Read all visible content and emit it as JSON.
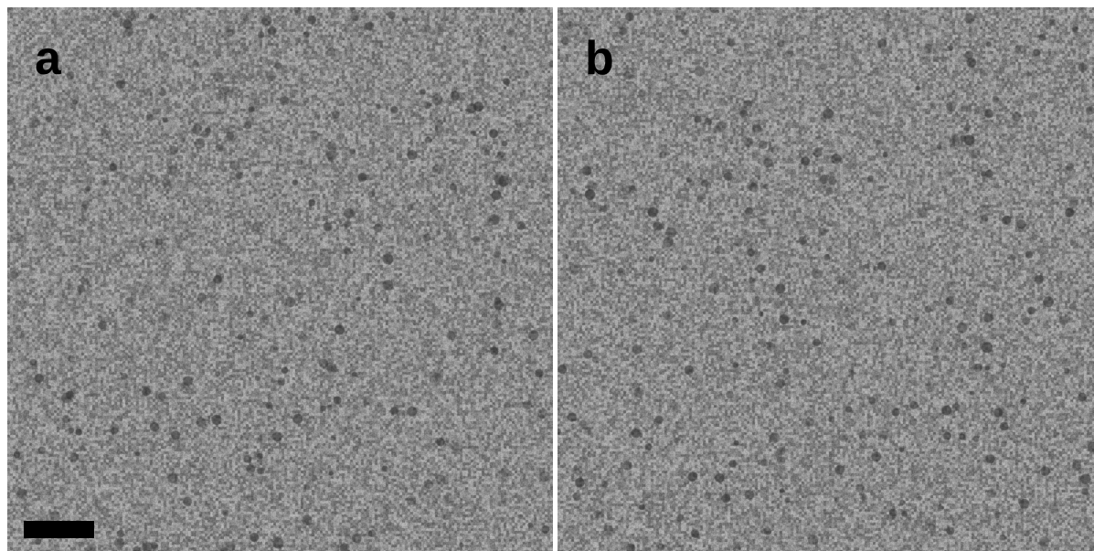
{
  "figure": {
    "panels": [
      {
        "label": "a"
      },
      {
        "label": "b"
      }
    ],
    "colors": {
      "background": "#ffffff",
      "micrograph_base": "#8a8a8a",
      "particle": "#3c3c3c",
      "label": "#000000",
      "scale_bar": "#000000"
    }
  }
}
